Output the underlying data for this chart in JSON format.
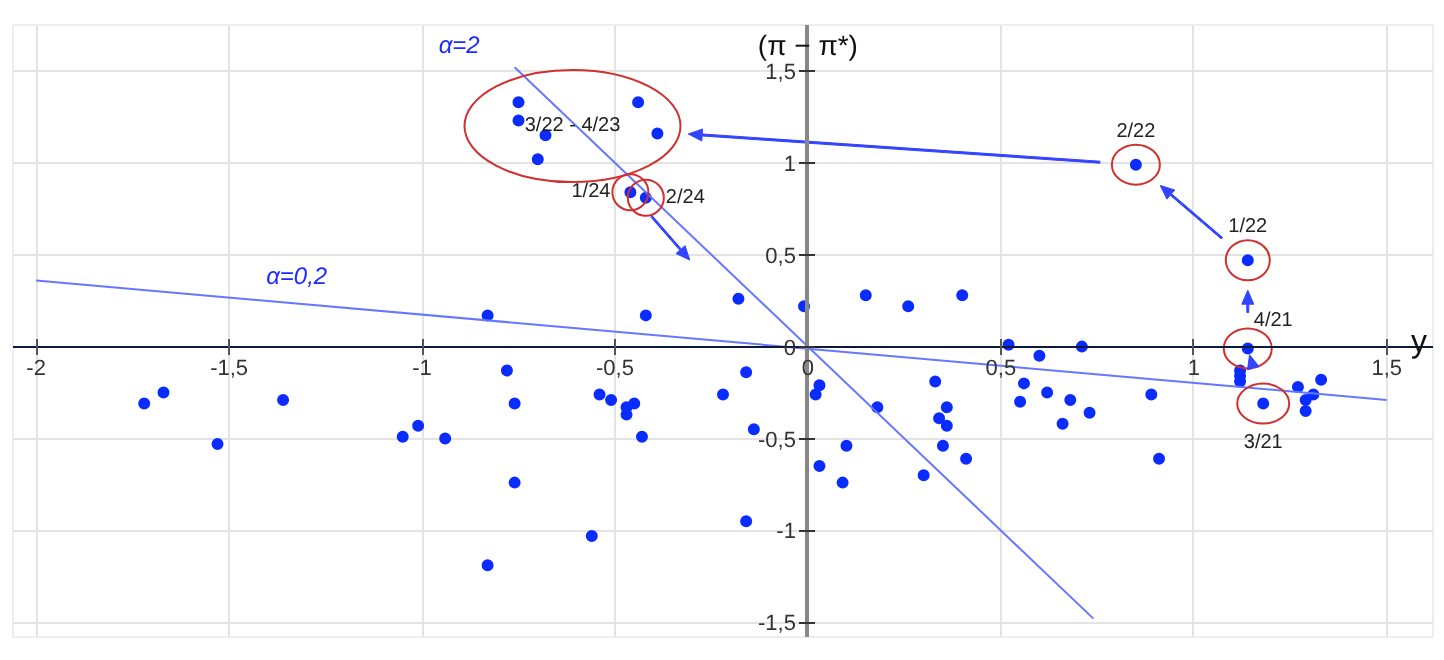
{
  "chart_data": {
    "type": "scatter",
    "xlabel": "y",
    "ylabel": "(π − π*)",
    "xlim": [
      -2.06,
      1.62
    ],
    "ylim": [
      -1.58,
      1.75
    ],
    "xticks": [
      {
        "value": -2,
        "label": "-2"
      },
      {
        "value": -1.5,
        "label": "-1,5"
      },
      {
        "value": -1,
        "label": "-1"
      },
      {
        "value": -0.5,
        "label": "-0,5"
      },
      {
        "value": 0,
        "label": "0"
      },
      {
        "value": 0.5,
        "label": "0,5"
      },
      {
        "value": 1,
        "label": "1"
      },
      {
        "value": 1.5,
        "label": "1,5"
      }
    ],
    "yticks": [
      {
        "value": -1.5,
        "label": "-1,5"
      },
      {
        "value": -1,
        "label": "-1"
      },
      {
        "value": -0.5,
        "label": "-0,5"
      },
      {
        "value": 0,
        "label": "0"
      },
      {
        "value": 0.5,
        "label": "0,5"
      },
      {
        "value": 1,
        "label": "1"
      },
      {
        "value": 1.5,
        "label": "1,5"
      }
    ],
    "grid": true,
    "marker": "circle",
    "series": [
      {
        "color": "#0a2cff",
        "x": [
          -1.72,
          -1.67,
          -1.53,
          -1.36,
          -1.05,
          -1.01,
          -0.94,
          -0.83,
          -0.78,
          -0.76,
          -0.76,
          -0.54,
          -0.51,
          -0.47,
          -0.45,
          -0.47,
          -0.43,
          -0.56,
          -0.22,
          -0.16,
          -0.14,
          -0.16,
          0.03,
          0.02,
          0.03,
          0.18,
          0.1,
          0.09,
          0.3,
          0.33,
          0.34,
          0.36,
          0.36,
          0.35,
          0.41,
          -0.75,
          -0.75,
          -0.68,
          -0.7,
          -0.44,
          -0.39,
          -0.46,
          -0.42,
          -0.83,
          -0.42,
          -0.18,
          -0.01,
          0.15,
          0.26,
          0.4,
          0.52,
          0.6,
          0.71,
          0.56,
          0.55,
          0.62,
          0.68,
          0.66,
          0.73,
          0.89,
          0.91,
          0.85,
          1.14,
          1.14,
          1.18,
          1.12,
          1.12,
          1.12,
          1.27,
          1.33,
          1.31,
          1.29,
          1.29
        ],
        "values": [
          -0.31,
          -0.25,
          -0.53,
          -0.29,
          -0.49,
          -0.43,
          -0.5,
          -1.19,
          -0.13,
          -0.31,
          -0.74,
          -0.26,
          -0.29,
          -0.33,
          -0.31,
          -0.37,
          -0.49,
          -1.03,
          -0.26,
          -0.14,
          -0.45,
          -0.95,
          -0.21,
          -0.26,
          -0.65,
          -0.33,
          -0.54,
          -0.74,
          -0.7,
          -0.19,
          -0.39,
          -0.33,
          -0.43,
          -0.54,
          -0.61,
          1.33,
          1.23,
          1.15,
          1.02,
          1.33,
          1.16,
          0.84,
          0.81,
          0.17,
          0.17,
          0.26,
          0.22,
          0.28,
          0.22,
          0.28,
          0.01,
          -0.05,
          0.0,
          -0.2,
          -0.3,
          -0.25,
          -0.29,
          -0.42,
          -0.36,
          -0.26,
          -0.61,
          0.99,
          0.47,
          -0.01,
          -0.31,
          -0.13,
          -0.16,
          -0.19,
          -0.22,
          -0.18,
          -0.26,
          -0.29,
          -0.35
        ]
      },
      {
        "type": "line",
        "marker": "none",
        "name": "α=2",
        "color": "#6677ff",
        "x": [
          -0.76,
          0.74
        ],
        "values": [
          1.52,
          -1.48
        ]
      },
      {
        "type": "line",
        "marker": "none",
        "name": "α=0,2",
        "color": "#6677ff",
        "x": [
          -2,
          1.5
        ],
        "values": [
          0.36,
          -0.29
        ]
      }
    ],
    "annotations": [
      {
        "text": "3/21",
        "x": 1.18,
        "y": -0.31
      },
      {
        "text": "4/21",
        "x": 1.14,
        "y": -0.01
      },
      {
        "text": "1/22",
        "x": 1.14,
        "y": 0.47
      },
      {
        "text": "2/22",
        "x": 0.85,
        "y": 0.99
      },
      {
        "text": "3/22 - 4/23",
        "x": -0.61,
        "y": 1.2
      },
      {
        "text": "1/24",
        "x": -0.46,
        "y": 0.84
      },
      {
        "text": "2/24",
        "x": -0.42,
        "y": 0.81
      }
    ]
  }
}
